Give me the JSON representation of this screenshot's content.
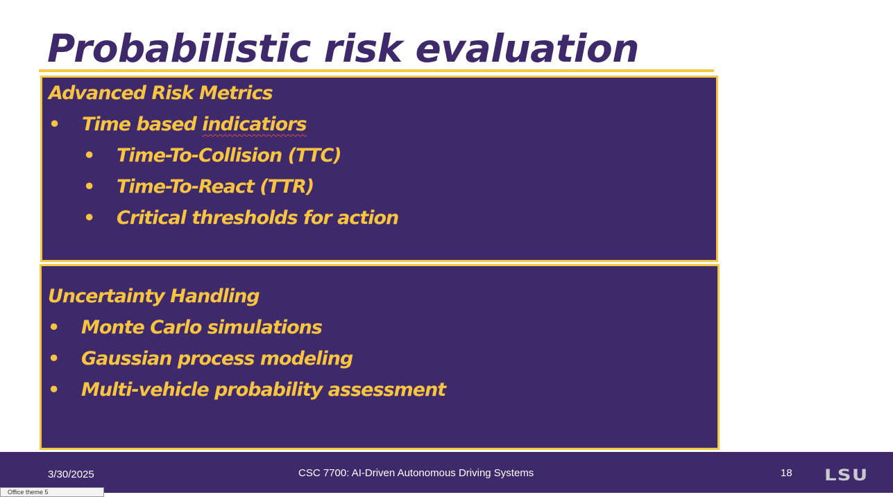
{
  "slide": {
    "title": "Probabilistic risk evaluation",
    "sections": [
      {
        "heading": "Advanced Risk Metrics",
        "items": [
          {
            "level": 1,
            "bullet": "•",
            "text_parts": [
              "Time based ",
              "indicatiors"
            ]
          },
          {
            "level": 2,
            "bullet": "•",
            "text": "Time-To-Collision (TTC)"
          },
          {
            "level": 2,
            "bullet": "•",
            "text": "Time-To-React (TTR)"
          },
          {
            "level": 2,
            "bullet": "•",
            "text": "Critical thresholds for action"
          }
        ]
      },
      {
        "heading": "Uncertainty Handling",
        "items": [
          {
            "level": 1,
            "bullet": "•",
            "text": "Monte Carlo simulations"
          },
          {
            "level": 1,
            "bullet": "•",
            "text": "Gaussian process modeling"
          },
          {
            "level": 1,
            "bullet": "•",
            "text": "Multi-vehicle probability assessment"
          }
        ]
      }
    ]
  },
  "footer": {
    "date": "3/30/2025",
    "course": "CSC 7700:  AI-Driven Autonomous Driving Systems",
    "page_number": "18",
    "logo_text": "LSU"
  },
  "tooltip": {
    "text": "Office  theme 5"
  },
  "colors": {
    "purple": "#3e2a6b",
    "gold": "#f5c842",
    "text_gold": "#f9c43f"
  }
}
